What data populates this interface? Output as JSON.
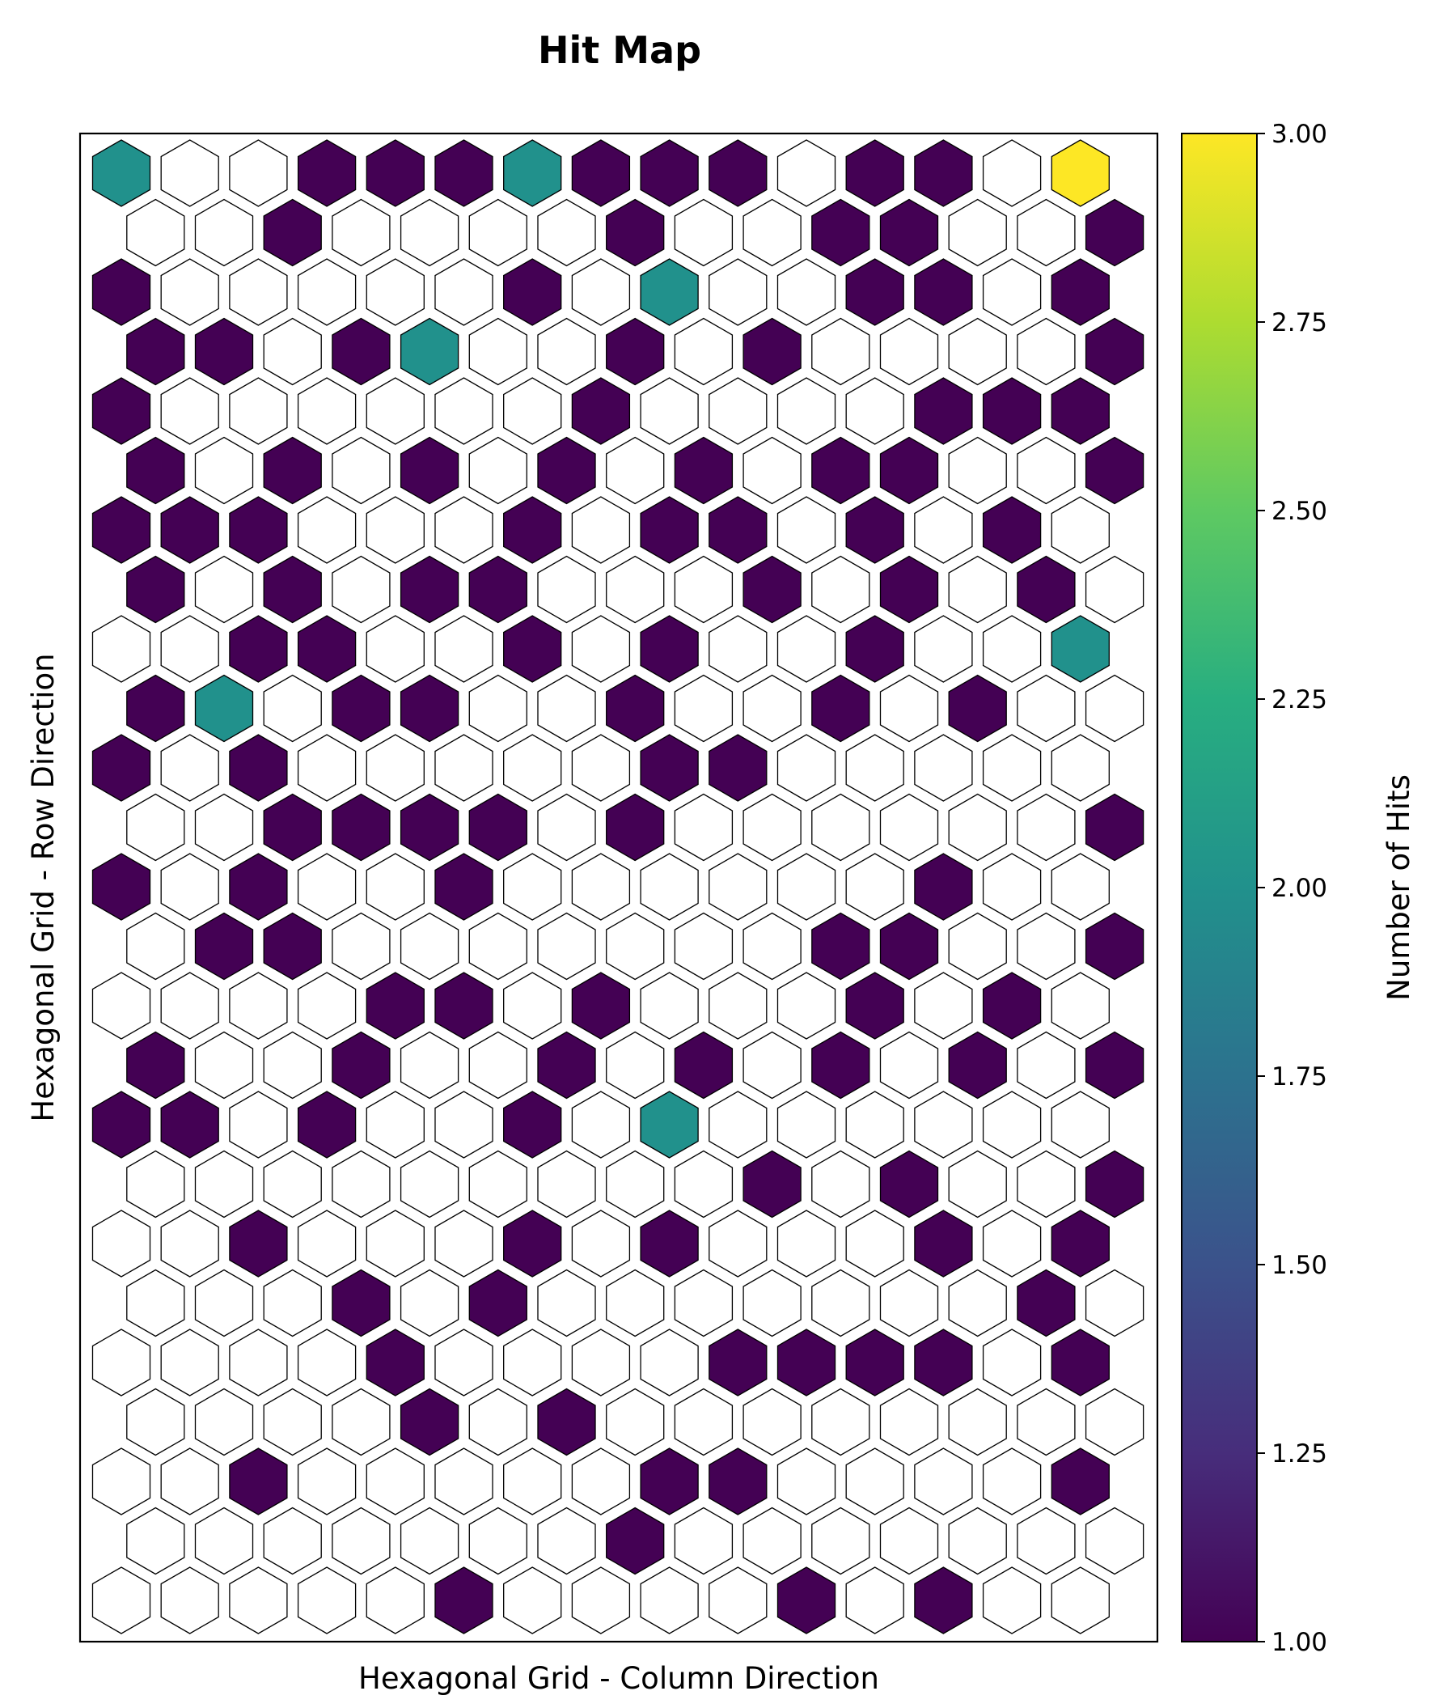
{
  "chart_data": {
    "type": "heatmap",
    "subtype": "hexagonal grid (odd rows offset right)",
    "title": "Hit Map",
    "xlabel": "Hexagonal Grid - Column Direction",
    "ylabel": "Hexagonal Grid - Row Direction",
    "colorbar_label": "Number of Hits",
    "colormap": "viridis",
    "zero_color": "#ffffff",
    "vmin": 1,
    "vmax": 3,
    "colorbar_ticks": [
      "1.00",
      "1.25",
      "1.50",
      "1.75",
      "2.00",
      "2.25",
      "2.50",
      "2.75",
      "3.00"
    ],
    "x_ticks": "none",
    "y_ticks": "none",
    "grid": false,
    "n_rows": 25,
    "n_cols": 15,
    "row_order": "top to bottom",
    "values": [
      [
        2,
        0,
        0,
        1,
        1,
        1,
        2,
        1,
        1,
        1,
        0,
        1,
        1,
        0,
        3
      ],
      [
        0,
        0,
        1,
        0,
        0,
        0,
        0,
        1,
        0,
        0,
        1,
        1,
        0,
        0,
        1
      ],
      [
        1,
        0,
        0,
        0,
        0,
        0,
        1,
        0,
        2,
        0,
        0,
        1,
        1,
        0,
        1
      ],
      [
        1,
        1,
        0,
        1,
        2,
        0,
        0,
        1,
        0,
        1,
        0,
        0,
        0,
        0,
        1
      ],
      [
        1,
        0,
        0,
        0,
        0,
        0,
        0,
        1,
        0,
        0,
        0,
        0,
        1,
        1,
        1
      ],
      [
        1,
        0,
        1,
        0,
        1,
        0,
        1,
        0,
        1,
        0,
        1,
        1,
        0,
        0,
        1
      ],
      [
        1,
        1,
        1,
        0,
        0,
        0,
        1,
        0,
        1,
        1,
        0,
        1,
        0,
        1,
        0
      ],
      [
        1,
        0,
        1,
        0,
        1,
        1,
        0,
        0,
        0,
        1,
        0,
        1,
        0,
        1,
        0
      ],
      [
        0,
        0,
        1,
        1,
        0,
        0,
        1,
        0,
        1,
        0,
        0,
        1,
        0,
        0,
        2
      ],
      [
        1,
        2,
        0,
        1,
        1,
        0,
        0,
        1,
        0,
        0,
        1,
        0,
        1,
        0,
        0
      ],
      [
        1,
        0,
        1,
        0,
        0,
        0,
        0,
        0,
        1,
        1,
        0,
        0,
        0,
        0,
        0
      ],
      [
        0,
        0,
        1,
        1,
        1,
        1,
        0,
        1,
        0,
        0,
        0,
        0,
        0,
        0,
        1
      ],
      [
        1,
        0,
        1,
        0,
        0,
        1,
        0,
        0,
        0,
        0,
        0,
        0,
        1,
        0,
        0
      ],
      [
        0,
        1,
        1,
        0,
        0,
        0,
        0,
        0,
        0,
        0,
        1,
        1,
        0,
        0,
        1
      ],
      [
        0,
        0,
        0,
        0,
        1,
        1,
        0,
        1,
        0,
        0,
        0,
        1,
        0,
        1,
        0
      ],
      [
        1,
        0,
        0,
        1,
        0,
        0,
        1,
        0,
        1,
        0,
        1,
        0,
        1,
        0,
        1
      ],
      [
        1,
        1,
        0,
        1,
        0,
        0,
        1,
        0,
        2,
        0,
        0,
        0,
        0,
        0,
        0
      ],
      [
        0,
        0,
        0,
        0,
        0,
        0,
        0,
        0,
        0,
        1,
        0,
        1,
        0,
        0,
        1
      ],
      [
        0,
        0,
        1,
        0,
        0,
        0,
        1,
        0,
        1,
        0,
        0,
        0,
        1,
        0,
        1
      ],
      [
        0,
        0,
        0,
        1,
        0,
        1,
        0,
        0,
        0,
        0,
        0,
        0,
        0,
        1,
        0
      ],
      [
        0,
        0,
        0,
        0,
        1,
        0,
        0,
        0,
        0,
        1,
        1,
        1,
        1,
        0,
        1
      ],
      [
        0,
        0,
        0,
        0,
        1,
        0,
        1,
        0,
        0,
        0,
        0,
        0,
        0,
        0,
        0
      ],
      [
        0,
        0,
        1,
        0,
        0,
        0,
        0,
        0,
        1,
        1,
        0,
        0,
        0,
        0,
        1
      ],
      [
        0,
        0,
        0,
        0,
        0,
        0,
        0,
        1,
        0,
        0,
        0,
        0,
        0,
        0,
        0
      ],
      [
        0,
        0,
        0,
        0,
        0,
        1,
        0,
        0,
        0,
        0,
        1,
        0,
        1,
        0,
        0
      ]
    ]
  }
}
